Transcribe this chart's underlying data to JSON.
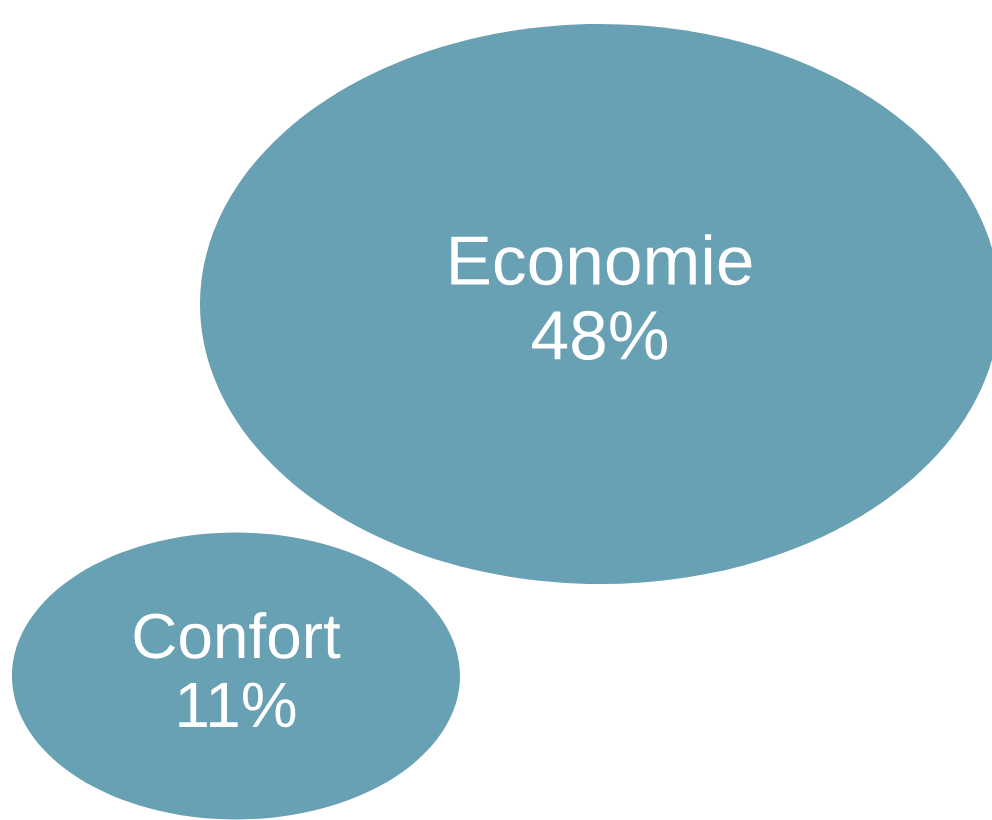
{
  "chart_data": {
    "type": "other",
    "categories": [
      "Economie",
      "Confort"
    ],
    "values": [
      48,
      11
    ],
    "value_labels": [
      "48%",
      "11%"
    ],
    "color": "#68a0b4"
  }
}
